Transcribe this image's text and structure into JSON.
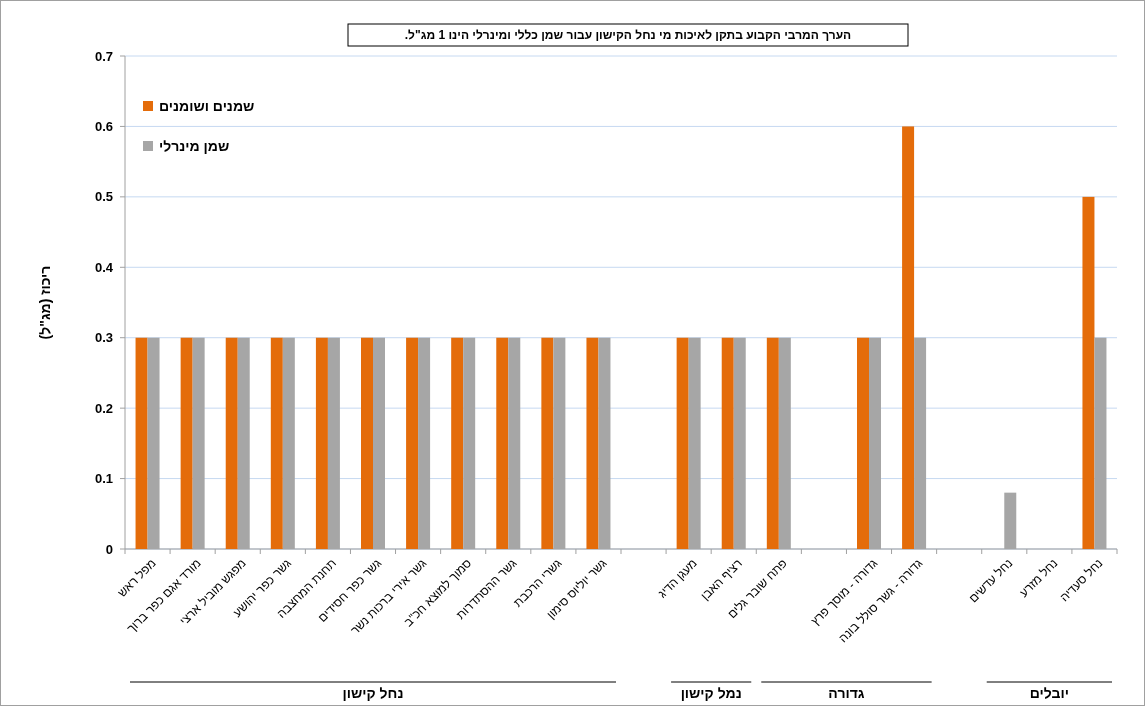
{
  "chart_data": {
    "type": "bar",
    "title": "הערך המרבי הקבוע בתקן לאיכות מי נחל הקישון  עבור שמן כללי ומינרלי הינו 1 מג\"ל.",
    "ylabel": "ריכוז (מג\"ל)",
    "categories": [
      "מפל ראש",
      "מורד אגם כפר ברוך",
      "מפגש מוביל ארצי",
      "גשר כפר יהושע",
      "תחנת המחצבה",
      "גשר כפר חסידים",
      "גשר אירי ברכות נשר",
      "סמוך למוצא חכ\"ב",
      "גשר ההסתדרות",
      "גשרי הרכבת",
      "גשר יוליוס סימון",
      null,
      "מעגן הדיג",
      "רציף האבן",
      "פתח שובר גלים",
      null,
      "גדורה - מוסך פרץ",
      "גדורה - גשר סולל בונה",
      null,
      "נחל עדשים",
      "נחל מזרע",
      "נחל סעדיה"
    ],
    "series": [
      {
        "name": "שמנים ושומנים",
        "color": "#e46c0a",
        "values": [
          0.3,
          0.3,
          0.3,
          0.3,
          0.3,
          0.3,
          0.3,
          0.3,
          0.3,
          0.3,
          0.3,
          null,
          0.3,
          0.3,
          0.3,
          null,
          0.3,
          0.6,
          null,
          null,
          null,
          0.5
        ]
      },
      {
        "name": "שמן מינרלי",
        "color": "#a6a6a6",
        "values": [
          0.3,
          0.3,
          0.3,
          0.3,
          0.3,
          0.3,
          0.3,
          0.3,
          0.3,
          0.3,
          0.3,
          null,
          0.3,
          0.3,
          0.3,
          null,
          0.3,
          0.3,
          null,
          0.08,
          null,
          0.3
        ]
      }
    ],
    "annotations": [
      "נחל קישון",
      "נמל קישון",
      "גדורה",
      "יובלים"
    ],
    "ylim": [
      0,
      0.7
    ],
    "yticks": [
      0,
      0.1,
      0.2,
      0.3,
      0.4,
      0.5,
      0.6,
      0.7
    ],
    "grid": "y",
    "legend": "top left"
  }
}
